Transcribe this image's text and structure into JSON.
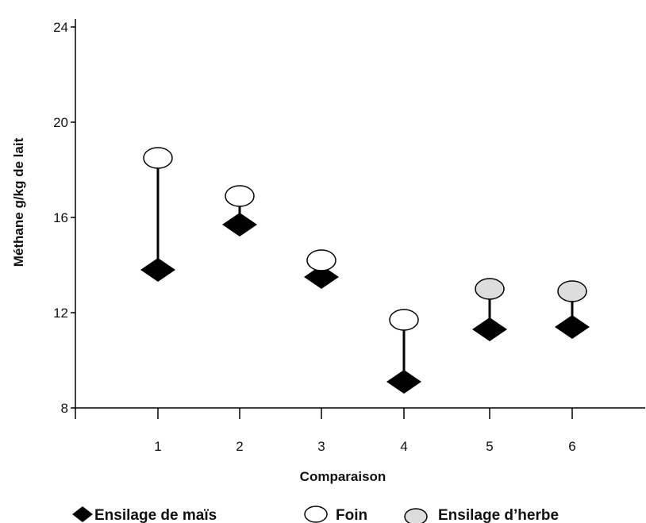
{
  "chart_data": {
    "type": "scatter",
    "title": "",
    "xlabel": "Comparaison",
    "ylabel": "Méthane g/kg de lait",
    "ylim": [
      8,
      24
    ],
    "y_ticks": [
      "8",
      "12",
      "16",
      "20",
      "24"
    ],
    "x_ticks": [
      "1",
      "2",
      "3",
      "4",
      "5",
      "6"
    ],
    "x": [
      1,
      2,
      3,
      4,
      5,
      6
    ],
    "grid": false,
    "legend_position": "bottom",
    "series": [
      {
        "name": "Ensilage de maïs",
        "marker": "diamond",
        "color": "#000000",
        "values": [
          13.8,
          15.7,
          13.5,
          9.1,
          11.3,
          11.4
        ]
      },
      {
        "name": "Foin",
        "marker": "circle",
        "color": "#ffffff",
        "values": [
          18.5,
          null,
          14.2,
          11.7,
          null,
          null
        ]
      },
      {
        "name": "Ensilage d’herbe",
        "marker": "circle",
        "color": "#dddddd",
        "values": [
          null,
          null,
          null,
          null,
          13.0,
          12.9
        ]
      }
    ],
    "extra_points": [
      {
        "series": "Foin",
        "x": 2,
        "y": 16.9
      }
    ]
  }
}
